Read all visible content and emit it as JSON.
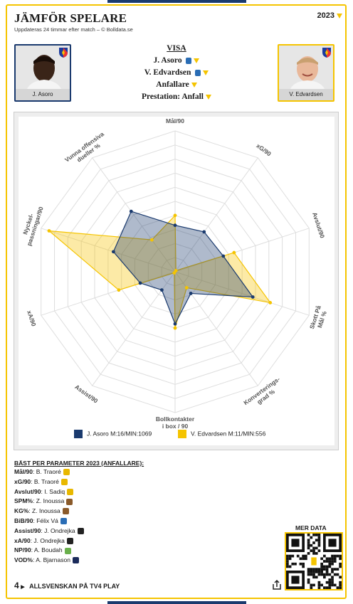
{
  "header": {
    "title": "JÄMFÖR SPELARE",
    "subtitle": "Uppdateras 24 timmar efter match – © Bolldata.se",
    "year": "2023"
  },
  "players": {
    "left": {
      "name": "J. Asoro"
    },
    "right": {
      "name": "V. Edvardsen"
    }
  },
  "visa": {
    "heading": "VISA",
    "player1": "J. Asoro",
    "player2": "V. Edvardsen",
    "position": "Anfallare",
    "prestation": "Prestation: Anfall"
  },
  "colors": {
    "player1": "#1a3a6e",
    "player2": "#f5c400",
    "accent": "#f5c400"
  },
  "chart_data": {
    "type": "radar",
    "axes": [
      "Mål/90",
      "xG/90",
      "Avslut/90",
      "Skott På Mål %",
      "Konverterings-grad %",
      "Bollkontakter i box / 90",
      "Assist/90",
      "xA/90",
      "Nyckel-passningar/90",
      "Vunna offensiva dueller %"
    ],
    "range": [
      0,
      10
    ],
    "series": [
      {
        "name": "J. Asoro M:16/MIN:1069",
        "values": [
          3.3,
          3.5,
          3.6,
          5.8,
          1.9,
          3.7,
          1.6,
          2.6,
          4.6,
          5.3
        ]
      },
      {
        "name": "V. Edvardsen M:11/MIN:556",
        "values": [
          4.0,
          0.1,
          4.4,
          7.1,
          1.4,
          4.0,
          0.1,
          4.2,
          9.4,
          2.8
        ]
      }
    ]
  },
  "legend": {
    "player1": "J. Asoro M:16/MIN:1069",
    "player2": "V. Edvardsen M:11/MIN:556"
  },
  "best": {
    "title": "BÄST PER PARAMETER 2023 (ANFALLARE):",
    "rows": [
      {
        "param": "Mål/90",
        "player": "B. Traoré",
        "color": "#e8b800"
      },
      {
        "param": "xG/90",
        "player": "B. Traoré",
        "color": "#e8b800"
      },
      {
        "param": "Avslut/90",
        "player": "I. Sadiq",
        "color": "#e8b800"
      },
      {
        "param": "SPM%",
        "player": "Z. Inoussa",
        "color": "#8a5a2a"
      },
      {
        "param": "KG%",
        "player": "Z. Inoussa",
        "color": "#8a5a2a"
      },
      {
        "param": "BiB/90",
        "player": "Félix Vá",
        "color": "#2a6db5"
      },
      {
        "param": "Assist/90",
        "player": "J. Ondrejka",
        "color": "#222222"
      },
      {
        "param": "xA/90",
        "player": "J. Ondrejka",
        "color": "#222222"
      },
      {
        "param": "NP/90",
        "player": "A. Boudah",
        "color": "#6ab04c"
      },
      {
        "param": "VOD%",
        "player": "A. Bjarnason",
        "color": "#1a2a5a"
      }
    ]
  },
  "mer_data": "MER DATA",
  "footer": {
    "text": "ALLSVENSKAN PÅ TV4 PLAY",
    "logo": "4"
  }
}
